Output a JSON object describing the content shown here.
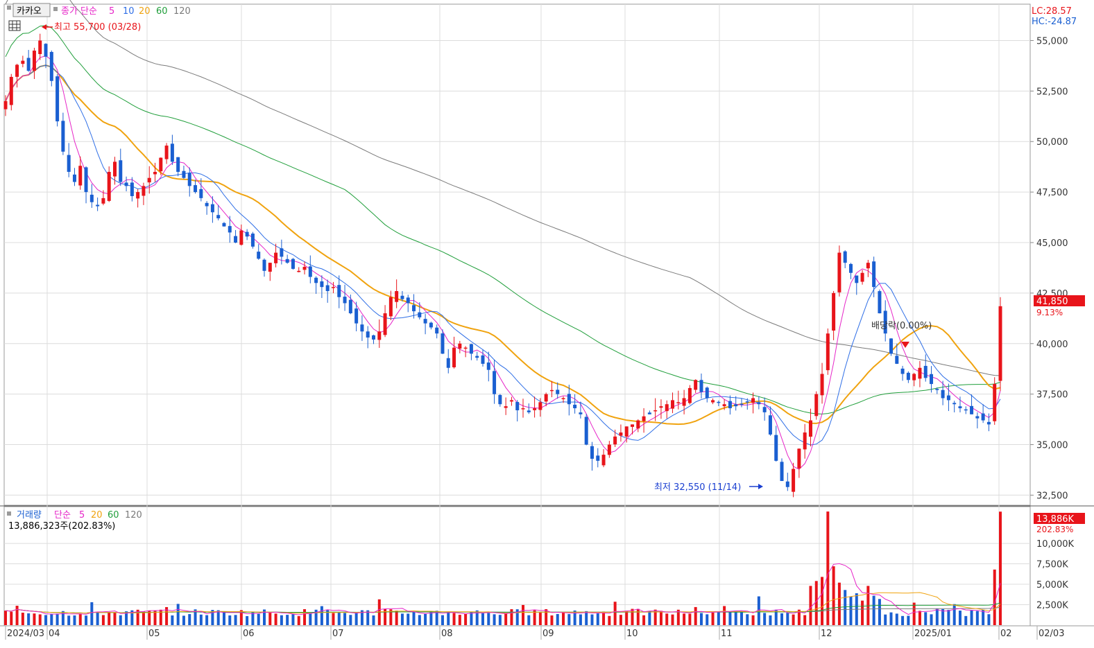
{
  "header": {
    "ticker_label": "카카오",
    "price_legend_title": "종가 단순",
    "price_ma_periods": [
      "5",
      "10",
      "20",
      "60",
      "120"
    ],
    "high_marker_text": "최고 55,700 (03/28)",
    "low_marker_text": "최저 32,550 (11/14)",
    "lc_text": "LC:28.57",
    "hc_text": "HC:-24.87",
    "current_price_label": "41,850",
    "current_change_label": "9.13%",
    "dividend_text": "배당락(0.00%)"
  },
  "volume_header": {
    "title": "거래량",
    "legend_title": "단순",
    "ma_periods": [
      "5",
      "20",
      "60",
      "120"
    ],
    "summary_text": "13,886,323주(202.83%)",
    "current_volume_label": "13,886K",
    "current_volume_pct": "202.83%"
  },
  "colors": {
    "up": "#e8141a",
    "down": "#1a5fd1",
    "ma5": "#e625c8",
    "ma10": "#2e6ee6",
    "ma20": "#f0a30f",
    "ma60": "#1f9e3a",
    "ma120": "#7a7a7a"
  },
  "chart_data": [
    {
      "type": "candlestick",
      "x_axis_labels": [
        "2024/03",
        "04",
        "05",
        "06",
        "07",
        "08",
        "09",
        "10",
        "11",
        "12",
        "2025/01",
        "02",
        "02/03"
      ],
      "y_ticks": [
        32500,
        35000,
        37500,
        40000,
        42500,
        45000,
        47500,
        50000,
        52500,
        55000
      ],
      "ylim": [
        32000,
        56800
      ],
      "moving_averages": [
        "5",
        "10",
        "20",
        "60",
        "120"
      ],
      "annotations": [
        {
          "label": "최고 55,700 (03/28)",
          "value": 55700
        },
        {
          "label": "최저 32,550 (11/14)",
          "value": 32550
        },
        {
          "label": "배당락(0.00%)"
        }
      ],
      "last_close": 41850,
      "last_change_pct": 9.13,
      "close_series_approx": [
        52000,
        53200,
        53800,
        54000,
        53500,
        54500,
        55000,
        54200,
        53000,
        51000,
        49500,
        48500,
        48000,
        48800,
        47500,
        47000,
        46800,
        47200,
        48500,
        49000,
        48000,
        47800,
        47300,
        47500,
        47800,
        48200,
        48500,
        49200,
        49800,
        49000,
        48500,
        48200,
        47800,
        47500,
        47200,
        46800,
        46500,
        46200,
        45800,
        45500,
        45000,
        45600,
        45300,
        44800,
        44200,
        43600,
        44000,
        44500,
        44300,
        44000,
        43700,
        43600,
        43800,
        43300,
        43000,
        42800,
        42600,
        42800,
        42300,
        42000,
        41500,
        41000,
        40600,
        40300,
        40200,
        40600,
        41500,
        42300,
        42600,
        42200,
        42000,
        41600,
        41300,
        41000,
        40800,
        40500,
        39500,
        38800,
        39800,
        40000,
        39800,
        39500,
        39300,
        39000,
        38700,
        37500,
        37000,
        36900,
        37200,
        36700,
        36800,
        36600,
        36800,
        37100,
        37500,
        37700,
        37500,
        37300,
        37000,
        36800,
        36500,
        35000,
        34300,
        34200,
        34500,
        35000,
        35400,
        35600,
        35900,
        36000,
        36200,
        36400,
        36500,
        36700,
        36900,
        37000,
        37200,
        37100,
        37300,
        37800,
        38200,
        37600,
        37300,
        37200,
        37100,
        37000,
        36800,
        36900,
        37000,
        37100,
        37300,
        37000,
        36600,
        35500,
        34200,
        33200,
        32900,
        33800,
        34800,
        35600,
        36200,
        37500,
        38500,
        40500,
        42500,
        44500,
        44000,
        43500,
        43000,
        43500,
        44000,
        42800,
        41500,
        40500,
        39500,
        39000,
        38500,
        38200,
        38500,
        38800,
        38300,
        38000,
        37700,
        37300,
        37200,
        37000,
        36800,
        36700,
        36500,
        36300,
        36200,
        36000,
        38000,
        41850
      ]
    },
    {
      "type": "bar",
      "title": "거래량",
      "y_ticks": [
        "2,500K",
        "5,000K",
        "7,500K",
        "10,000K"
      ],
      "y_tick_values": [
        2500000,
        5000000,
        7500000,
        10000000
      ],
      "ylim": [
        0,
        14500000
      ],
      "moving_averages": [
        "5",
        "20",
        "60",
        "120"
      ],
      "last_volume": 13886323,
      "last_volume_pct": 202.83,
      "peaks_approx": [
        {
          "label": "12",
          "value": 13900000
        },
        {
          "label": "02",
          "value": 13886323
        }
      ]
    }
  ]
}
